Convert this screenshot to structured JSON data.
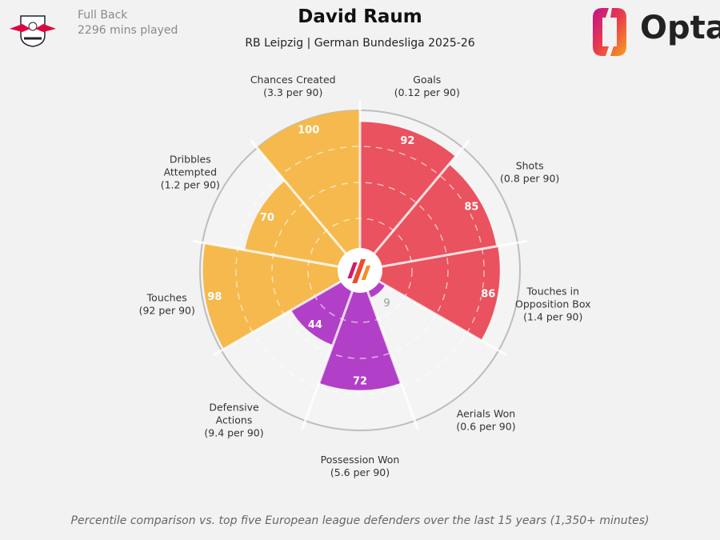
{
  "player": {
    "position": "Full Back",
    "minutes": "2296 mins played"
  },
  "title": "David Raum",
  "subtitle": "RB Leipzig | German Bundesliga 2025-26",
  "brand": "Opta",
  "footer": "Percentile comparison vs. top five European league defenders over the last 15 years (1,350+ minutes)",
  "colors": {
    "attacking": "#e9525e",
    "defending": "#b23fc7",
    "possession": "#f6b94d"
  },
  "chart_data": {
    "type": "polar-bar",
    "scale": [
      0,
      100
    ],
    "grid": true,
    "categories": [
      {
        "label": [
          "Goals",
          "(0.12 per 90)"
        ],
        "value": 92,
        "group": "attacking"
      },
      {
        "label": [
          "Shots",
          "(0.8 per 90)"
        ],
        "value": 85,
        "group": "attacking"
      },
      {
        "label": [
          "Touches in",
          "Opposition Box",
          "(1.4 per 90)"
        ],
        "value": 86,
        "group": "attacking"
      },
      {
        "label": [
          "Aerials Won",
          "(0.6 per 90)"
        ],
        "value": 9,
        "group": "defending"
      },
      {
        "label": [
          "Possession Won",
          "(5.6 per 90)"
        ],
        "value": 72,
        "group": "defending"
      },
      {
        "label": [
          "Defensive",
          "Actions",
          "(9.4 per 90)"
        ],
        "value": 44,
        "group": "defending"
      },
      {
        "label": [
          "Touches",
          "(92 per 90)"
        ],
        "value": 98,
        "group": "possession"
      },
      {
        "label": [
          "Dribbles",
          "Attempted",
          "(1.2 per 90)"
        ],
        "value": 70,
        "group": "possession"
      },
      {
        "label": [
          "Chances Created",
          "(3.3 per 90)"
        ],
        "value": 100,
        "group": "possession"
      }
    ]
  }
}
